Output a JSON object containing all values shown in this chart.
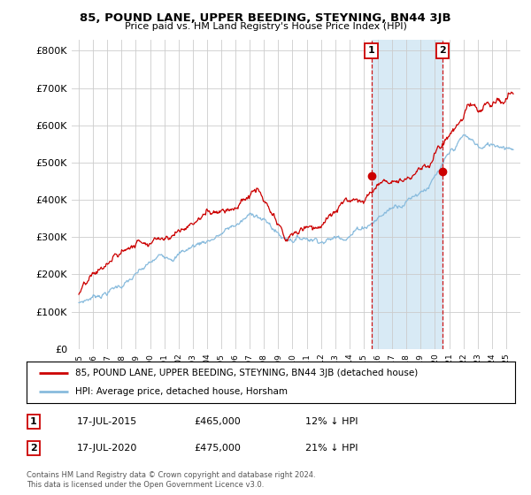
{
  "title": "85, POUND LANE, UPPER BEEDING, STEYNING, BN44 3JB",
  "subtitle": "Price paid vs. HM Land Registry's House Price Index (HPI)",
  "ylim": [
    0,
    830000
  ],
  "yticks": [
    0,
    100000,
    200000,
    300000,
    400000,
    500000,
    600000,
    700000,
    800000
  ],
  "ytick_labels": [
    "£0",
    "£100K",
    "£200K",
    "£300K",
    "£400K",
    "£500K",
    "£600K",
    "£700K",
    "£800K"
  ],
  "sale1": {
    "date_num": 2015.54,
    "price": 465000,
    "label": "1",
    "date_str": "17-JUL-2015",
    "pct": "12%"
  },
  "sale2": {
    "date_num": 2020.54,
    "price": 475000,
    "label": "2",
    "date_str": "17-JUL-2020",
    "pct": "21%"
  },
  "legend_property": "85, POUND LANE, UPPER BEEDING, STEYNING, BN44 3JB (detached house)",
  "legend_hpi": "HPI: Average price, detached house, Horsham",
  "footer": "Contains HM Land Registry data © Crown copyright and database right 2024.\nThis data is licensed under the Open Government Licence v3.0.",
  "line_color_property": "#cc0000",
  "line_color_hpi": "#88bbdd",
  "shade_color": "#d8eaf5",
  "background_color": "#ffffff",
  "grid_color": "#cccccc"
}
